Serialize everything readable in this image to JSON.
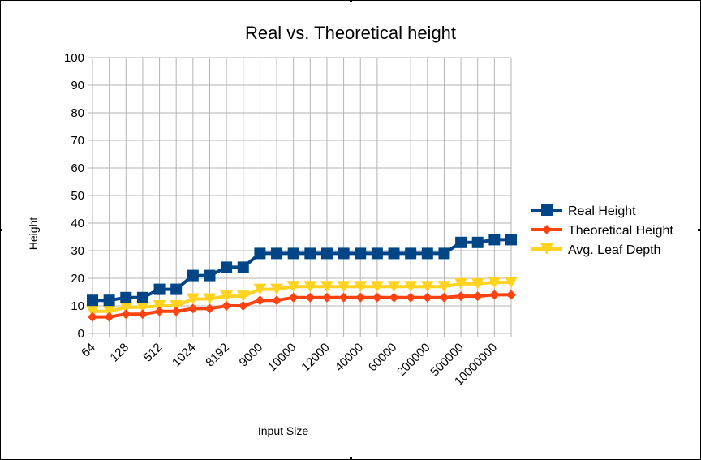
{
  "chart_data": {
    "type": "line",
    "title": "Real vs. Theoretical height",
    "xlabel": "Input Size",
    "ylabel": "Height",
    "ylim": [
      0,
      100
    ],
    "yticks": [
      0,
      10,
      20,
      30,
      40,
      50,
      60,
      70,
      80,
      90,
      100
    ],
    "grid": true,
    "legend_position": "right",
    "x_tick_labels": [
      "64",
      "128",
      "512",
      "1024",
      "8192",
      "9000",
      "10000",
      "12000",
      "40000",
      "60000",
      "200000",
      "500000",
      "10000000"
    ],
    "x_tick_label_indices": [
      0,
      2,
      4,
      6,
      8,
      10,
      12,
      14,
      16,
      18,
      20,
      22,
      24
    ],
    "num_points": 26,
    "series": [
      {
        "name": "Real Height",
        "color": "#004586",
        "marker": "square",
        "values": [
          12,
          12,
          13,
          13,
          16,
          16,
          21,
          21,
          24,
          24,
          29,
          29,
          29,
          29,
          29,
          29,
          29,
          29,
          29,
          29,
          29,
          29,
          33,
          33,
          34,
          34
        ]
      },
      {
        "name": "Theoretical Height",
        "color": "#ff420e",
        "marker": "diamond",
        "values": [
          6,
          6,
          7,
          7,
          8,
          8,
          9,
          9,
          10,
          10,
          12,
          12,
          13,
          13,
          13,
          13,
          13,
          13,
          13,
          13,
          13,
          13,
          13.5,
          13.5,
          14,
          14
        ]
      },
      {
        "name": "Avg. Leaf Depth",
        "color": "#ffd320",
        "marker": "triangle-down",
        "values": [
          8,
          8,
          9.5,
          9.5,
          10,
          10,
          12.5,
          12.5,
          13.5,
          13.5,
          16,
          16,
          17,
          17,
          17,
          17,
          17,
          17,
          17,
          17,
          17,
          17,
          18,
          18,
          18.5,
          18.5
        ]
      }
    ]
  }
}
